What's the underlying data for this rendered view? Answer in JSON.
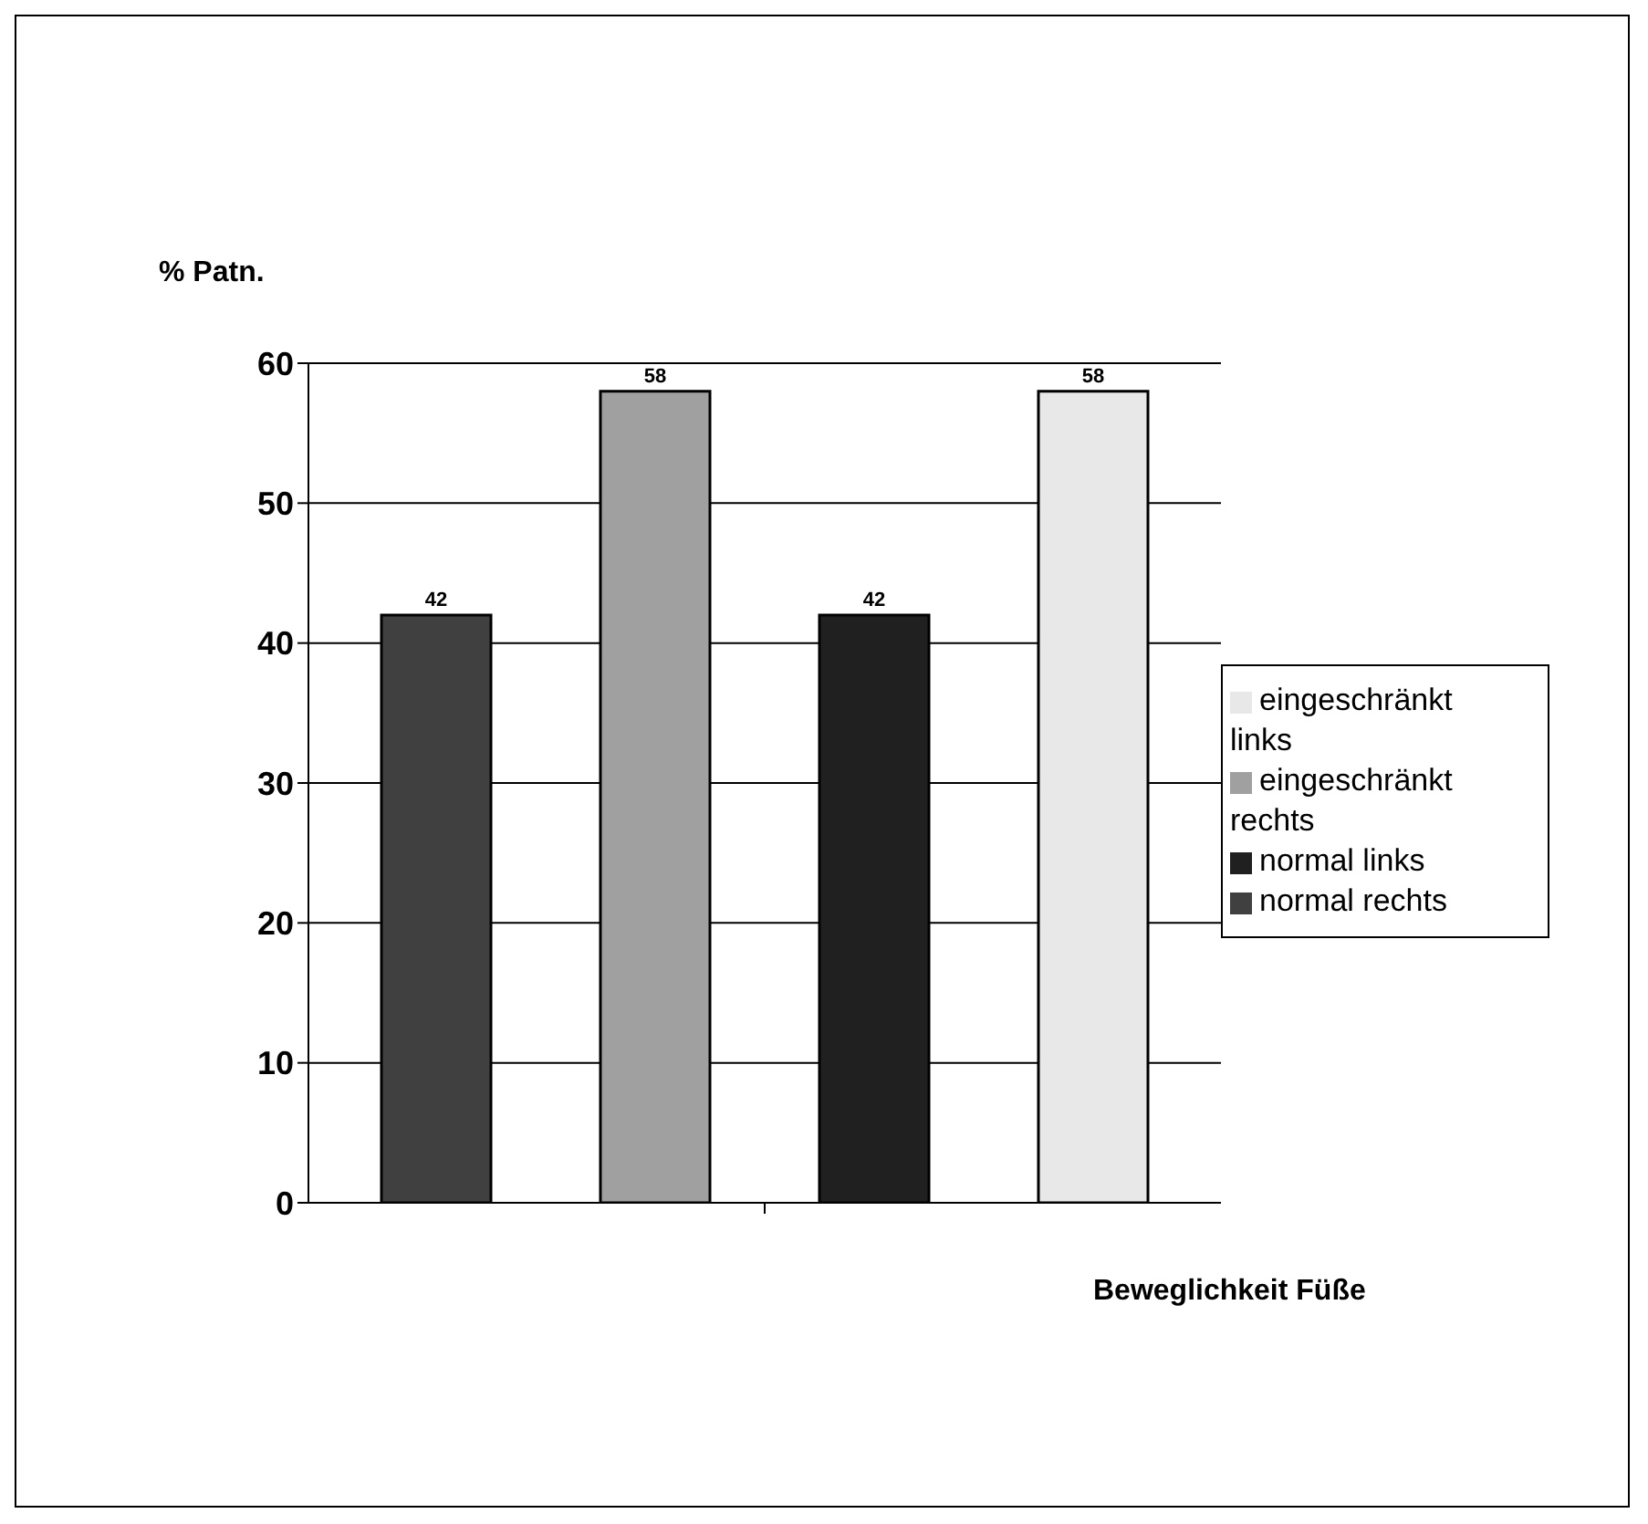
{
  "chart_data": {
    "type": "bar",
    "xlabel": "Beweglichkeit Füße",
    "ylabel": "% Patn.",
    "categories": [
      null
    ],
    "series": [
      {
        "name": "normal rechts",
        "color": "#404040",
        "values": [
          42
        ]
      },
      {
        "name": "eingeschränkt rechts",
        "color": "#a0a0a0",
        "values": [
          58
        ]
      },
      {
        "name": "normal links",
        "color": "#202020",
        "values": [
          42
        ]
      },
      {
        "name": "eingeschränkt links",
        "color": "#e8e8e8",
        "values": [
          58
        ]
      }
    ],
    "ylim": [
      0,
      60
    ],
    "yticks": [
      0,
      10,
      20,
      30,
      40,
      50,
      60
    ],
    "grid": "y",
    "legend": "right",
    "data_labels": true
  }
}
